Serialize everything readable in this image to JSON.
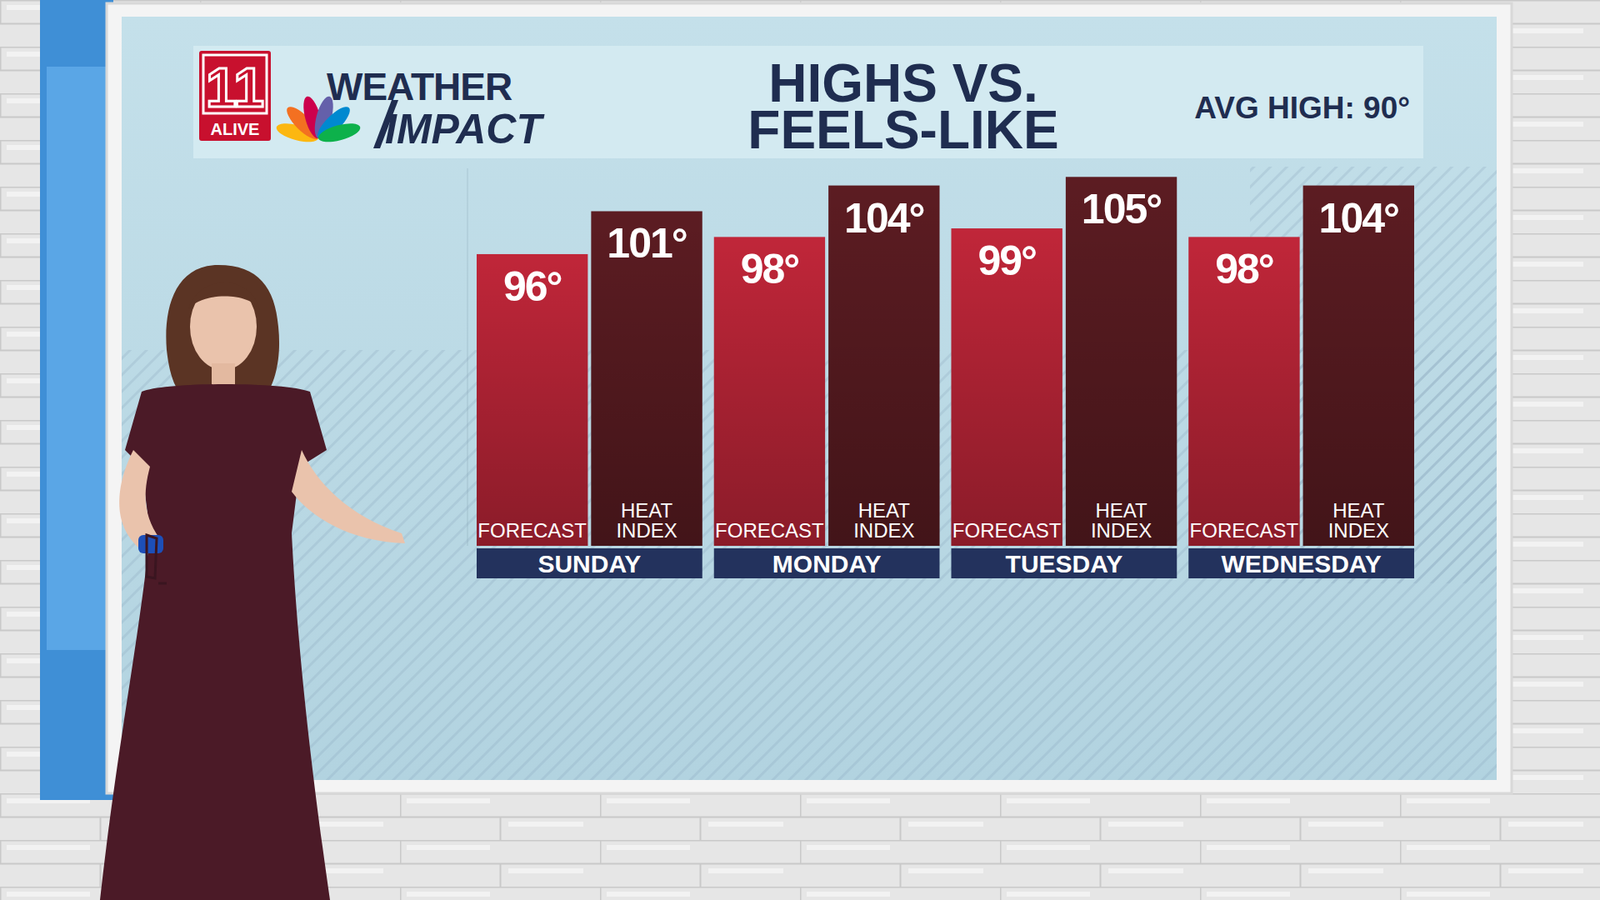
{
  "header": {
    "logo_number": "11",
    "logo_text": "ALIVE",
    "show_title": [
      "WEATHER",
      "IMPACT"
    ]
  },
  "chart_data": {
    "type": "bar",
    "title": "HIGHS VS. FEELS-LIKE",
    "annotations": [
      "AVG HIGH: 90°"
    ],
    "categories": [
      "SUNDAY",
      "MONDAY",
      "TUESDAY",
      "WEDNESDAY"
    ],
    "series": [
      {
        "name": "FORECAST",
        "color": "#c02639",
        "values": [
          96,
          98,
          99,
          98
        ],
        "value_labels": [
          "96°",
          "98°",
          "99°",
          "98°"
        ]
      },
      {
        "name": "HEAT INDEX",
        "color": "#5c1c22",
        "values": [
          101,
          104,
          105,
          104
        ],
        "value_labels": [
          "101°",
          "104°",
          "105°",
          "104°"
        ]
      }
    ],
    "ylim": [
      62,
      106
    ],
    "tick_labels": false,
    "grid": false,
    "data_labels": true
  }
}
